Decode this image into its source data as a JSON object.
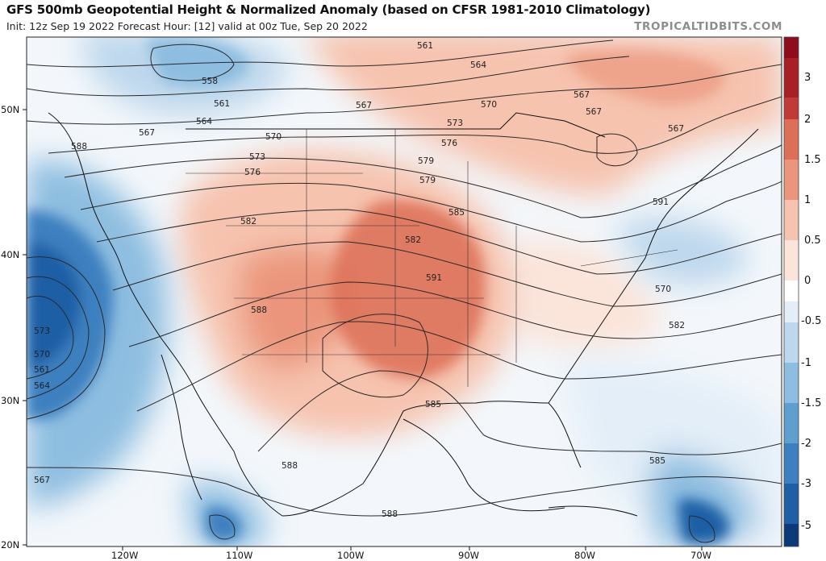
{
  "header": {
    "title": "GFS 500mb Geopotential Height & Normalized Anomaly (based on CFSR 1981-2010 Climatology)",
    "subtitle": "Init: 12z Sep 19 2022   Forecast Hour: [12]   valid at 00z Tue, Sep 20 2022",
    "watermark": "TROPICALTIDBITS.COM"
  },
  "map": {
    "lat_ticks": [
      "50N",
      "40N",
      "30N",
      "20N"
    ],
    "lon_ticks": [
      "120W",
      "110W",
      "100W",
      "90W",
      "80W",
      "70W"
    ],
    "contour_labels": [
      "561",
      "564",
      "567",
      "570",
      "573",
      "576",
      "579",
      "582",
      "585",
      "588",
      "591",
      "558"
    ],
    "height_labels_placed": [
      "561",
      "564",
      "558",
      "561",
      "564",
      "567",
      "567",
      "570",
      "573",
      "576",
      "579",
      "582",
      "585",
      "588",
      "591",
      "567",
      "567",
      "567",
      "570",
      "573",
      "576",
      "579",
      "582",
      "585",
      "588",
      "591",
      "573",
      "570",
      "561",
      "564",
      "567",
      "570",
      "582",
      "585",
      "588",
      "588"
    ]
  },
  "colorbar": {
    "labels": [
      "3",
      "2",
      "1.5",
      "1",
      "0.5",
      "0",
      "-0.5",
      "-1",
      "-1.5",
      "-2",
      "-3",
      "-5"
    ],
    "colors": {
      "pos_3": "#8e0c1c",
      "pos_2": "#c23a36",
      "pos_1_5": "#dc6f55",
      "pos_1": "#eb967c",
      "pos_0_5": "#f6c3ae",
      "pos_0": "#fbe4d9",
      "neg_0": "#e3eef8",
      "neg_0_5": "#bdd7ec",
      "neg_1": "#8dbde0",
      "neg_1_5": "#5f9fd0",
      "neg_2": "#3d80bf",
      "neg_3": "#1f5fa5",
      "neg_5": "#0b3a78"
    }
  }
}
